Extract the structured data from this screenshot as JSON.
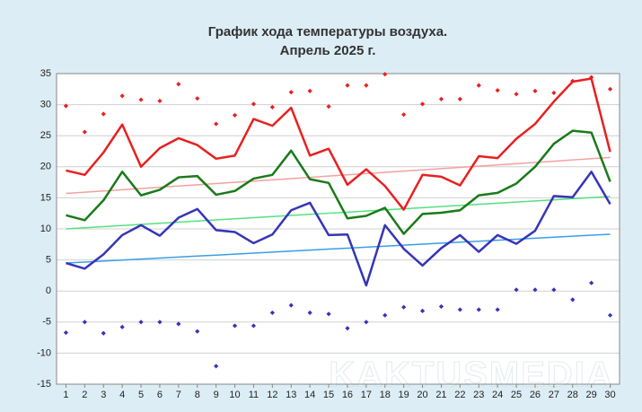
{
  "chart_data": {
    "type": "line",
    "title": [
      "График хода температуры воздуха.",
      "Апрель 2025 г."
    ],
    "watermark": "KAKTUSMEDIA",
    "categories": [
      "1",
      "2",
      "3",
      "4",
      "5",
      "6",
      "7",
      "8",
      "9",
      "10",
      "11",
      "12",
      "13",
      "14",
      "15",
      "16",
      "17",
      "18",
      "19",
      "20",
      "21",
      "22",
      "23",
      "24",
      "25",
      "26",
      "27",
      "28",
      "29",
      "30"
    ],
    "ylim": [
      -15,
      35
    ],
    "yticks": [
      -15,
      -10,
      -5,
      0,
      5,
      10,
      15,
      20,
      25,
      30,
      35
    ],
    "grid": true,
    "series": [
      {
        "color": "#f4a0a0",
        "style": "line",
        "width": 1.5,
        "values": [
          15.7,
          15.9,
          16.1,
          16.3,
          16.5,
          16.7,
          16.9,
          17.1,
          17.3,
          17.5,
          17.7,
          17.9,
          18.1,
          18.3,
          18.5,
          18.7,
          18.9,
          19.1,
          19.3,
          19.5,
          19.7,
          19.9,
          20.1,
          20.3,
          20.5,
          20.7,
          20.9,
          21.1,
          21.3,
          21.5
        ]
      },
      {
        "color": "#55e080",
        "style": "line",
        "width": 1.5,
        "values": [
          10.0,
          10.18,
          10.36,
          10.54,
          10.72,
          10.9,
          11.08,
          11.26,
          11.44,
          11.62,
          11.8,
          11.98,
          12.16,
          12.34,
          12.52,
          12.7,
          12.88,
          13.06,
          13.24,
          13.42,
          13.6,
          13.78,
          13.96,
          14.14,
          14.32,
          14.5,
          14.68,
          14.86,
          15.04,
          15.22
        ]
      },
      {
        "color": "#3a9ee8",
        "style": "line",
        "width": 1.5,
        "values": [
          4.5,
          4.66,
          4.82,
          4.98,
          5.14,
          5.3,
          5.46,
          5.62,
          5.78,
          5.94,
          6.1,
          6.26,
          6.42,
          6.58,
          6.74,
          6.9,
          7.06,
          7.22,
          7.38,
          7.54,
          7.7,
          7.86,
          8.02,
          8.18,
          8.34,
          8.5,
          8.66,
          8.82,
          8.98,
          9.14
        ]
      },
      {
        "color": "#e82020",
        "style": "line",
        "width": 2.5,
        "values": [
          19.4,
          18.7,
          22.3,
          26.8,
          20.0,
          23.0,
          24.6,
          23.5,
          21.3,
          21.8,
          27.7,
          26.6,
          29.5,
          21.8,
          22.9,
          17.1,
          19.6,
          16.9,
          13.1,
          18.7,
          18.4,
          17.0,
          21.7,
          21.4,
          24.5,
          26.9,
          30.5,
          33.7,
          34.2,
          22.4
        ]
      },
      {
        "color": "#1a7a1a",
        "style": "line",
        "width": 2.5,
        "values": [
          12.2,
          11.4,
          14.6,
          19.2,
          15.4,
          16.3,
          18.3,
          18.5,
          15.5,
          16.1,
          18.1,
          18.7,
          22.6,
          18.0,
          17.4,
          11.7,
          12.1,
          13.4,
          9.2,
          12.4,
          12.6,
          13.0,
          15.4,
          15.8,
          17.3,
          20.0,
          23.7,
          25.8,
          25.5,
          17.6
        ]
      },
      {
        "color": "#3535b8",
        "style": "line",
        "width": 2.5,
        "values": [
          4.5,
          3.6,
          5.9,
          9.0,
          10.6,
          8.9,
          11.8,
          13.2,
          9.8,
          9.5,
          7.7,
          9.1,
          13.0,
          14.2,
          9.0,
          9.1,
          0.9,
          10.6,
          6.8,
          4.1,
          6.9,
          9.0,
          6.3,
          9.0,
          7.6,
          9.7,
          15.3,
          15.1,
          19.2,
          14.0
        ]
      },
      {
        "color": "#e82020",
        "style": "markers",
        "values": [
          29.8,
          25.6,
          28.5,
          31.4,
          30.8,
          30.6,
          33.3,
          31.0,
          26.9,
          28.3,
          30.1,
          29.6,
          32.0,
          32.2,
          29.7,
          33.1,
          33.1,
          34.9,
          28.4,
          30.1,
          30.9,
          30.9,
          33.1,
          32.3,
          31.7,
          32.2,
          31.9,
          33.8,
          34.4,
          32.5
        ]
      },
      {
        "color": "#3535b8",
        "style": "markers",
        "values": [
          -6.7,
          -5.0,
          -6.8,
          -5.8,
          -5.0,
          -5.0,
          -5.3,
          -6.5,
          -12.1,
          -5.6,
          -5.6,
          -3.5,
          -2.3,
          -3.5,
          -3.7,
          -6.0,
          -5.0,
          -3.9,
          -2.6,
          -3.2,
          -2.5,
          -3.0,
          -3.0,
          -3.0,
          0.2,
          0.2,
          0.2,
          -1.4,
          1.3,
          -3.9
        ]
      }
    ]
  }
}
